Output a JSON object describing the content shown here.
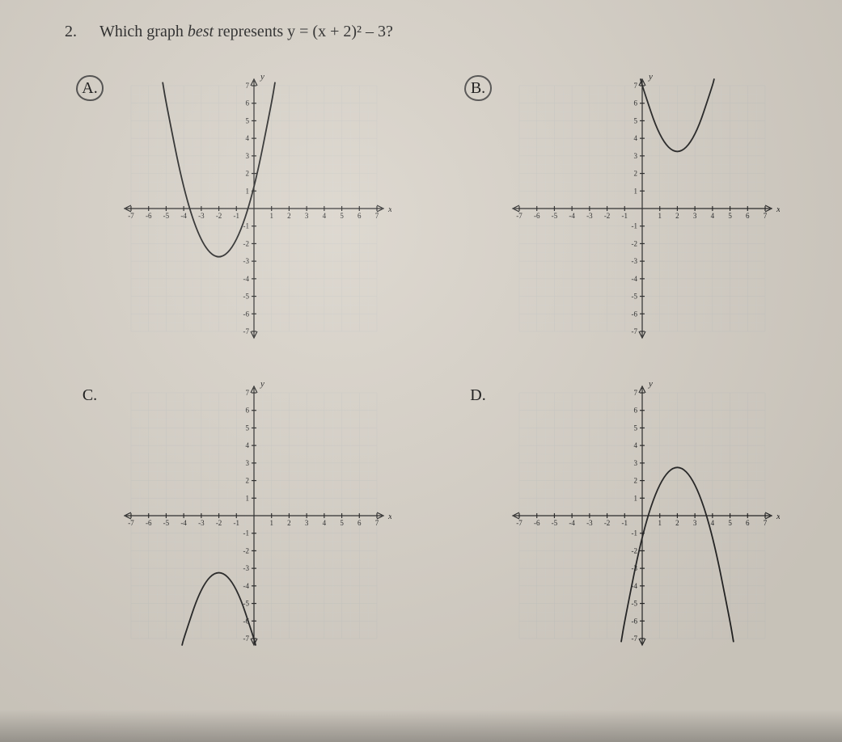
{
  "question": {
    "number": "2.",
    "text_before_eq": "Which graph ",
    "emph_word": "best",
    "text_after_emph": " represents ",
    "equation": "y = (x + 2)² – 3?"
  },
  "axis": {
    "x_label": "x",
    "y_label": "y",
    "xmin": -7,
    "xmax": 7,
    "ymin": -7,
    "ymax": 7,
    "major_ticks": [
      -7,
      -6,
      -5,
      -4,
      -3,
      -2,
      -1,
      1,
      2,
      3,
      4,
      5,
      6,
      7
    ],
    "x_tick_labels": [
      "-7",
      "-6",
      "-5",
      "-4",
      "-3",
      "-2",
      "-1",
      "1",
      "2",
      "3",
      "4",
      "5",
      "6",
      "7"
    ],
    "y_tick_labels_pos": [
      "1",
      "2",
      "3",
      "4",
      "5",
      "6",
      "7"
    ],
    "y_tick_labels_neg": [
      "-1",
      "-2",
      "-3",
      "-4",
      "-5",
      "-6",
      "-7"
    ]
  },
  "style": {
    "background_color": "#d8d2c8",
    "grid_color": "#c9c9c5",
    "minor_grid_color": "#d4d4d0",
    "axis_color": "#222222",
    "curve_color": "#222222",
    "axis_width": 1.2,
    "curve_width": 1.8,
    "axis_label_fontsize": 11,
    "tick_fontsize": 9,
    "question_fontsize": 20
  },
  "choices": [
    {
      "letter": "A.",
      "circled": true,
      "type": "parabola",
      "vertex": [
        -2,
        -3
      ],
      "opens": "up",
      "a": 1,
      "sample_points": [
        [
          -5.2,
          7.2
        ],
        [
          -5,
          6
        ],
        [
          -4,
          1
        ],
        [
          -3,
          -2
        ],
        [
          -2,
          -3
        ],
        [
          -1,
          -2
        ],
        [
          0,
          1
        ],
        [
          1,
          6
        ],
        [
          1.2,
          7.2
        ]
      ]
    },
    {
      "letter": "B.",
      "circled": true,
      "type": "parabola",
      "vertex": [
        2,
        3
      ],
      "opens": "up",
      "a": 1,
      "sample_points": [
        [
          -0.1,
          7.4
        ],
        [
          0,
          7
        ],
        [
          1,
          4
        ],
        [
          2,
          3
        ],
        [
          3,
          4
        ],
        [
          4,
          7
        ],
        [
          4.1,
          7.4
        ]
      ]
    },
    {
      "letter": "C.",
      "circled": false,
      "type": "parabola",
      "vertex": [
        -2,
        -3
      ],
      "opens": "down",
      "a": -1,
      "sample_points": [
        [
          -4.1,
          -7.4
        ],
        [
          -4,
          -7
        ],
        [
          -3,
          -4
        ],
        [
          -2,
          -3
        ],
        [
          -1,
          -4
        ],
        [
          0,
          -7
        ],
        [
          0.1,
          -7.4
        ]
      ]
    },
    {
      "letter": "D.",
      "circled": false,
      "type": "parabola",
      "vertex": [
        2,
        3
      ],
      "opens": "down",
      "a": -1,
      "sample_points": [
        [
          -1.2,
          -7.2
        ],
        [
          -1,
          -6
        ],
        [
          0,
          -1
        ],
        [
          1,
          2
        ],
        [
          2,
          3
        ],
        [
          3,
          2
        ],
        [
          4,
          -1
        ],
        [
          5,
          -6
        ],
        [
          5.2,
          -7.2
        ]
      ]
    }
  ]
}
